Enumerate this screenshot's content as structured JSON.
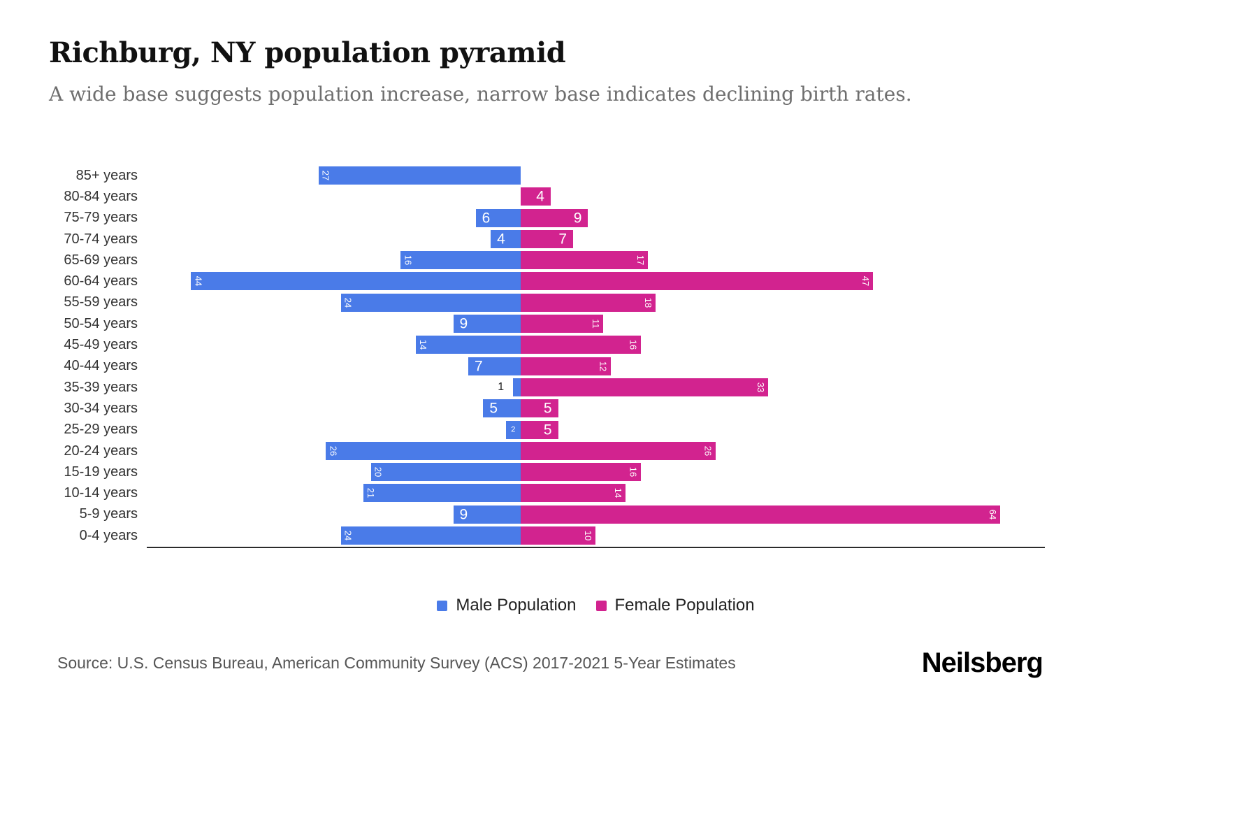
{
  "header": {
    "title": "Richburg, NY population pyramid",
    "subtitle": "A wide base suggests population increase, narrow base indicates declining birth rates."
  },
  "legend": {
    "male": "Male Population",
    "female": "Female Population"
  },
  "footer": {
    "source": "Source: U.S. Census Bureau, American Community Survey (ACS) 2017-2021 5-Year Estimates",
    "brand": "Neilsberg"
  },
  "colors": {
    "male": "#4A7BE8",
    "female": "#D2238F",
    "axis": "#2b2b2b",
    "subtitle_gray": "#6e6e6e"
  },
  "chart_data": {
    "type": "bar",
    "subtype": "population-pyramid",
    "orientation": "horizontal",
    "title": "Richburg, NY population pyramid",
    "categories": [
      "85+ years",
      "80-84 years",
      "75-79 years",
      "70-74 years",
      "65-69 years",
      "60-64 years",
      "55-59 years",
      "50-54 years",
      "45-49 years",
      "40-44 years",
      "35-39 years",
      "30-34 years",
      "25-29 years",
      "20-24 years",
      "15-19 years",
      "10-14 years",
      "5-9 years",
      "0-4 years"
    ],
    "series": [
      {
        "name": "Male Population",
        "side": "left",
        "color": "#4A7BE8",
        "values": [
          27,
          0,
          6,
          4,
          16,
          44,
          24,
          9,
          14,
          7,
          1,
          5,
          2,
          26,
          20,
          21,
          9,
          24
        ]
      },
      {
        "name": "Female Population",
        "side": "right",
        "color": "#D2238F",
        "values": [
          0,
          4,
          9,
          7,
          17,
          47,
          18,
          11,
          16,
          12,
          33,
          5,
          5,
          26,
          16,
          14,
          64,
          10
        ]
      }
    ],
    "value_labels": "inside-bar-outer-end",
    "axis": {
      "left_max": 50,
      "right_max": 70,
      "gridlines": false,
      "tick_labels_shown": false
    },
    "legend_position": "bottom"
  }
}
